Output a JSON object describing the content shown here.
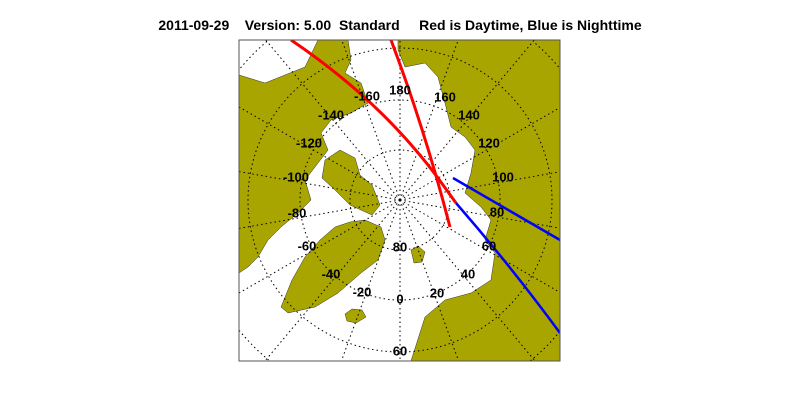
{
  "title": {
    "date": "2011-09-29",
    "version": "Version: 5.00",
    "mode": "Standard",
    "legend": "Red is Daytime, Blue is Nighttime"
  },
  "map": {
    "projection": "north polar stereographic",
    "land_color": "#a9a500",
    "day_color": "#ff0000",
    "night_color": "#0000ff",
    "longitude_labels": [
      "180",
      "160",
      "140",
      "120",
      "100",
      "80",
      "60",
      "40",
      "20",
      "0",
      "-20",
      "-40",
      "-60",
      "-80",
      "-100",
      "-120",
      "-140",
      "-160"
    ],
    "latitude_labels": [
      "80",
      "60"
    ]
  }
}
